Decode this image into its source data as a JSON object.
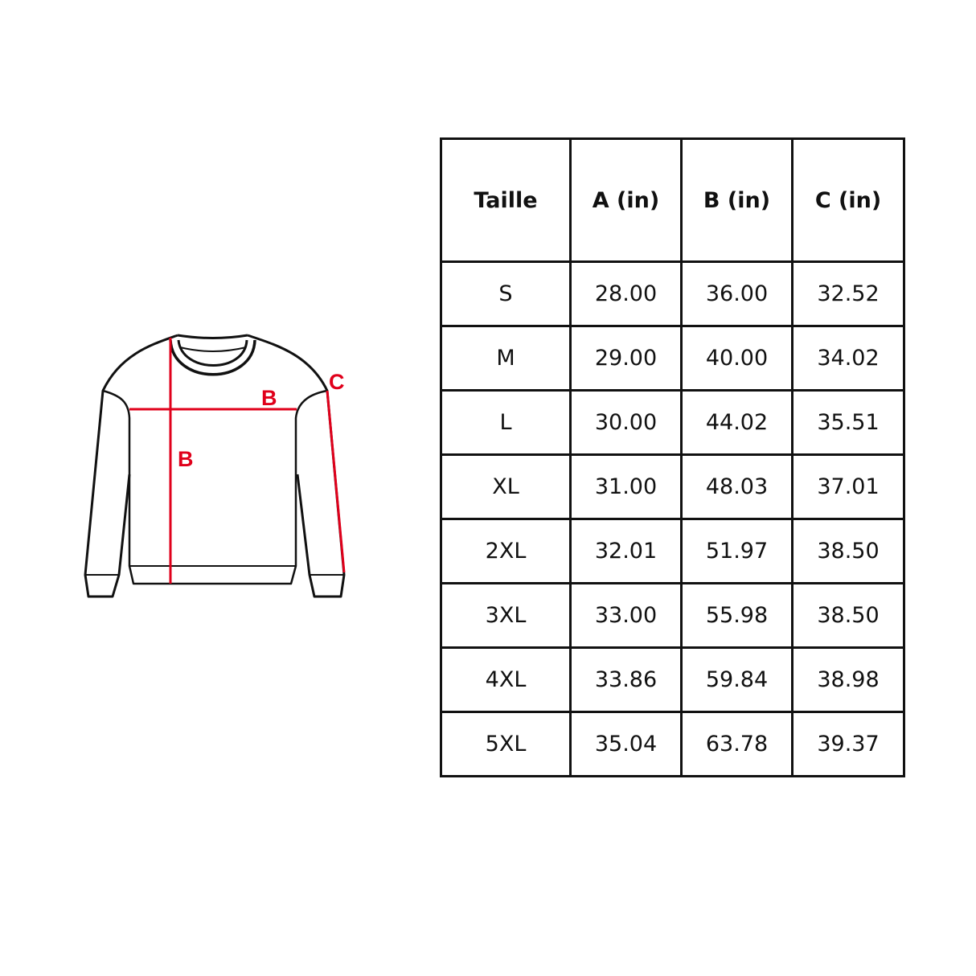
{
  "diagram": {
    "labels": {
      "width": "B",
      "length": "B",
      "sleeve": "C"
    },
    "accent_color": "#e0001b"
  },
  "table": {
    "headers": [
      "Taille",
      "A (in)",
      "B (in)",
      "C (in)"
    ],
    "rows": [
      [
        "S",
        "28.00",
        "36.00",
        "32.52"
      ],
      [
        "M",
        "29.00",
        "40.00",
        "34.02"
      ],
      [
        "L",
        "30.00",
        "44.02",
        "35.51"
      ],
      [
        "XL",
        "31.00",
        "48.03",
        "37.01"
      ],
      [
        "2XL",
        "32.01",
        "51.97",
        "38.50"
      ],
      [
        "3XL",
        "33.00",
        "55.98",
        "38.50"
      ],
      [
        "4XL",
        "33.86",
        "59.84",
        "38.98"
      ],
      [
        "5XL",
        "35.04",
        "63.78",
        "39.37"
      ]
    ]
  }
}
